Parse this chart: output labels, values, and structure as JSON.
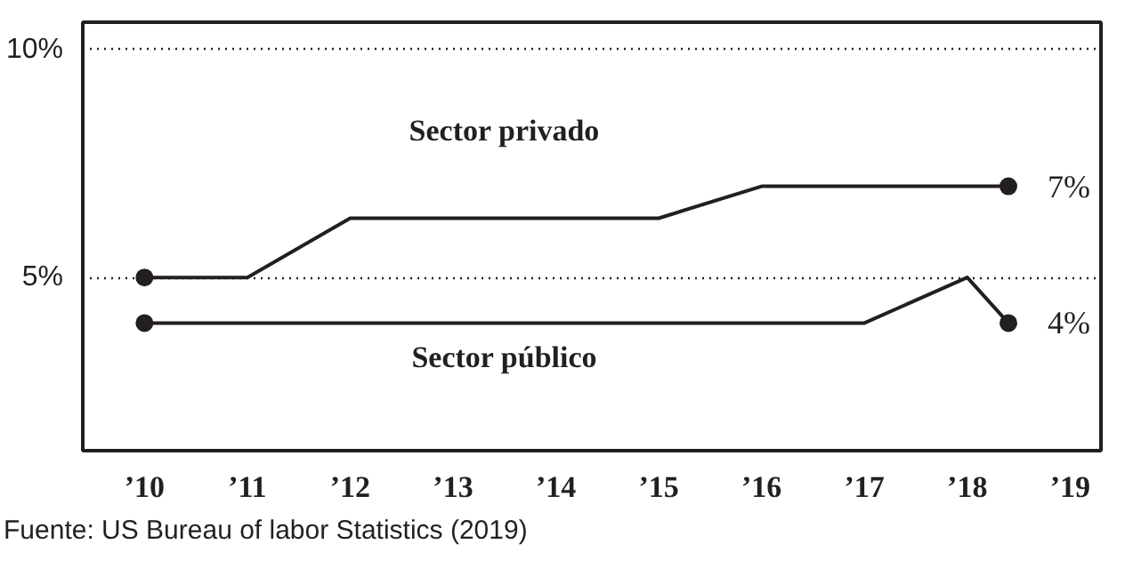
{
  "chart_data": {
    "type": "line",
    "x": [
      2010,
      2011,
      2012,
      2015,
      2016,
      2018.4
    ],
    "xlim": [
      2009.4,
      2019.3
    ],
    "ylim": [
      1.2,
      10.6
    ],
    "xticks": [
      {
        "value": 2010,
        "label": "’10"
      },
      {
        "value": 2011,
        "label": "’11"
      },
      {
        "value": 2012,
        "label": "’12"
      },
      {
        "value": 2013,
        "label": "’13"
      },
      {
        "value": 2014,
        "label": "’14"
      },
      {
        "value": 2015,
        "label": "’15"
      },
      {
        "value": 2016,
        "label": "’16"
      },
      {
        "value": 2017,
        "label": "’17"
      },
      {
        "value": 2018,
        "label": "’18"
      },
      {
        "value": 2019,
        "label": "’19"
      }
    ],
    "yticks": [
      {
        "value": 5,
        "label": "5%"
      },
      {
        "value": 10,
        "label": "10%"
      }
    ],
    "grid": "y",
    "series": [
      {
        "name": "Sector privado",
        "color": "#231f20",
        "values": [
          5,
          5,
          6.3,
          6.3,
          7,
          7
        ],
        "value_labels": [
          null,
          null,
          null,
          null,
          null,
          "7%"
        ]
      },
      {
        "name": "Sector público",
        "color": "#231f20",
        "x": [
          2010,
          2017,
          2018,
          2018.4
        ],
        "values": [
          4,
          4,
          5,
          4
        ],
        "value_labels": [
          null,
          null,
          null,
          "4%"
        ]
      },
      {
        "type": "scatter",
        "marker": "circle",
        "color": "#231f20",
        "x": [
          2010,
          2018.4
        ],
        "values": [
          5,
          7
        ]
      },
      {
        "type": "scatter",
        "marker": "circle",
        "color": "#231f20",
        "x": [
          2010,
          2018.4
        ],
        "values": [
          4,
          4
        ]
      }
    ],
    "annotations": [
      "Fuente: US Bureau of labor Statistics (2019)"
    ]
  }
}
